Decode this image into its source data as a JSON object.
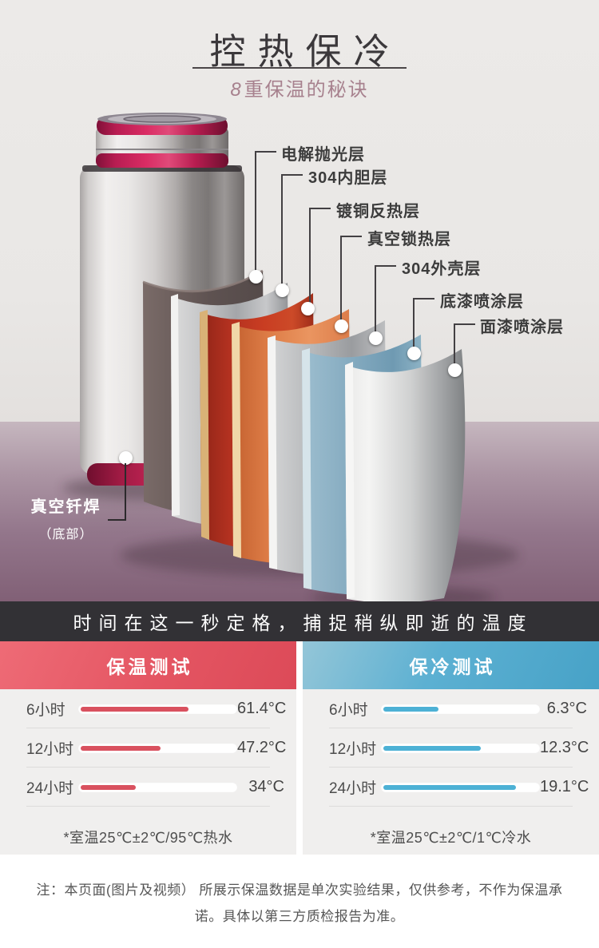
{
  "header": {
    "title": "控热保冷",
    "subtitle_num": "8",
    "subtitle_rest": "重保温的秘诀"
  },
  "diagram": {
    "layers": [
      "电解抛光层",
      "304内胆层",
      "镀铜反热层",
      "真空锁热层",
      "304外壳层",
      "底漆喷涂层",
      "面漆喷涂层"
    ],
    "bottom": {
      "line1": "真空钎焊",
      "line2": "（底部）"
    }
  },
  "banner": {
    "text": "时间在这一秒定格，捕捉稍纵即逝的温度"
  },
  "tests": {
    "hot": {
      "title": "保温测试",
      "rows": [
        {
          "time": "6小时",
          "value": "61.4°C",
          "percent": 70
        },
        {
          "time": "12小时",
          "value": "47.2°C",
          "percent": 52
        },
        {
          "time": "24小时",
          "value": "34°C",
          "percent": 36
        }
      ],
      "note": "*室温25℃±2℃/95℃热水"
    },
    "cold": {
      "title": "保冷测试",
      "rows": [
        {
          "time": "6小时",
          "value": "6.3°C",
          "percent": 36
        },
        {
          "time": "12小时",
          "value": "12.3°C",
          "percent": 63
        },
        {
          "time": "24小时",
          "value": "19.1°C",
          "percent": 86
        }
      ],
      "note": "*室温25℃±2℃/1℃冷水"
    }
  },
  "disclaimer": "注：本页面(图片及视频） 所展示保温数据是单次实验结果，仅供参考，不作为保温承诺。具体以第三方质检报告为准。",
  "colors": {
    "hot_header": "#e4596a",
    "cold_header": "#56abce",
    "hot_bar": "#d9515f",
    "cold_bar": "#4db1d5",
    "banner_bg": "#323135",
    "floor": "#93768b",
    "wall": "#eceae8",
    "subtitle": "#a7818e",
    "cap_pink": "#c02058"
  },
  "chart_data": [
    {
      "type": "bar",
      "title": "保温测试",
      "categories": [
        "6小时",
        "12小时",
        "24小时"
      ],
      "values": [
        61.4,
        47.2,
        34
      ],
      "unit": "°C",
      "note": "*室温25℃±2℃/95℃热水"
    },
    {
      "type": "bar",
      "title": "保冷测试",
      "categories": [
        "6小时",
        "12小时",
        "24小时"
      ],
      "values": [
        6.3,
        12.3,
        19.1
      ],
      "unit": "°C",
      "note": "*室温25℃±2℃/1℃冷水"
    }
  ]
}
